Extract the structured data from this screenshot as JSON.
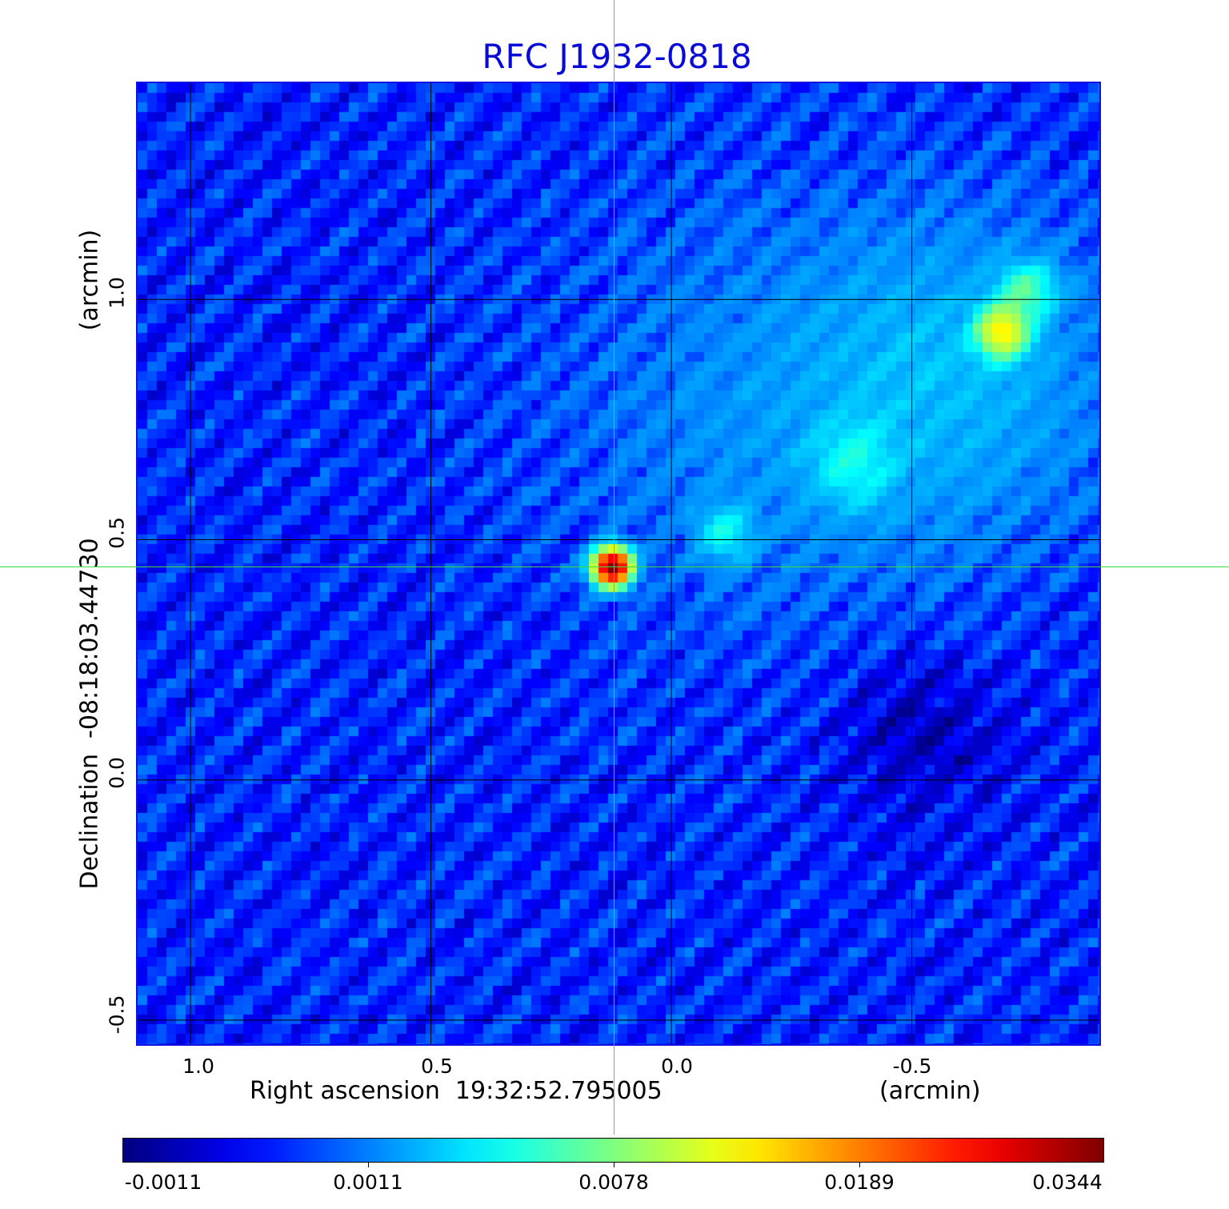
{
  "chart_data": {
    "type": "heatmap",
    "title": "RFC J1932-0818",
    "xlabel": "Right ascension  19:32:52.795005",
    "xunit": "(arcmin)",
    "ylabel": "Declination  -08:18:03.44730",
    "yunit": "(arcmin)",
    "xlim": [
      1.11,
      -0.89
    ],
    "ylim": [
      -0.55,
      1.45
    ],
    "xticks": [
      "1.0",
      "0.5",
      "0.0",
      "-0.5"
    ],
    "xtick_values": [
      1.0,
      0.5,
      0.0,
      -0.5
    ],
    "yticks": [
      "1.0",
      "0.5",
      "0.0",
      "-0.5"
    ],
    "ytick_values": [
      1.0,
      0.5,
      0.0,
      -0.5
    ],
    "grid": true,
    "crosshair": [
      0.12,
      0.443
    ],
    "colormap": "jet",
    "colorbar": {
      "placement": "bottom",
      "ticks": [
        "-0.0011",
        "0.0011",
        "0.0078",
        "0.0189",
        "0.0344"
      ],
      "tick_values": [
        -0.0011,
        0.0011,
        0.0078,
        0.0189,
        0.0344
      ]
    },
    "background_level": 0.0003,
    "sources": [
      {
        "ra": 0.123,
        "dec": 0.443,
        "peak": 0.0344,
        "width": 0.025
      },
      {
        "ra": -0.113,
        "dec": 0.515,
        "peak": 0.0035,
        "width": 0.04
      },
      {
        "ra": -0.377,
        "dec": 0.657,
        "peak": 0.003,
        "width": 0.06
      },
      {
        "ra": -0.688,
        "dec": 0.932,
        "peak": 0.012,
        "width": 0.035
      },
      {
        "ra": -0.74,
        "dec": 1.02,
        "peak": 0.005,
        "width": 0.04
      },
      {
        "ra": -0.6,
        "dec": 0.85,
        "peak": 0.002,
        "width": 0.22
      },
      {
        "ra": -0.2,
        "dec": 0.75,
        "peak": 0.0012,
        "width": 0.3
      },
      {
        "ra": -0.52,
        "dec": 0.1,
        "peak": -0.0009,
        "width": 0.12
      }
    ]
  }
}
